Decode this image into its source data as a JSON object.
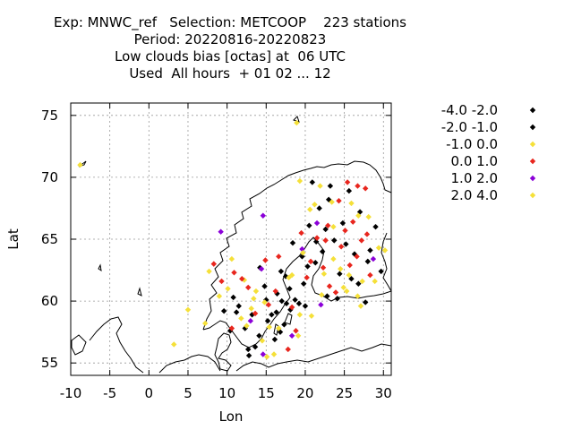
{
  "title": {
    "line1": "Exp: MNWC_ref   Selection: METCOOP    223 stations",
    "line2": "Period: 20220816-20220823",
    "line3": "Low clouds bias [octas] at  06 UTC",
    "line4": "Used  All hours  + 01 02 ... 12"
  },
  "chart_data": {
    "type": "scatter",
    "xlabel": "Lon",
    "ylabel": "Lat",
    "xlim": [
      -10,
      31
    ],
    "ylim": [
      54,
      76
    ],
    "xticks": [
      -10,
      -5,
      0,
      5,
      10,
      15,
      20,
      25,
      30
    ],
    "yticks": [
      55,
      60,
      65,
      70,
      75
    ],
    "grid": true,
    "legend_position": "right",
    "series": [
      {
        "name": "-4.0 -2.0",
        "color": "#000000",
        "points": [
          [
            11.5,
            59.6
          ],
          [
            12.3,
            57.8
          ],
          [
            15.2,
            58.4
          ],
          [
            16.4,
            60.6
          ],
          [
            17.6,
            59.8
          ],
          [
            18.1,
            59.3
          ],
          [
            19.8,
            61.4
          ],
          [
            21.3,
            63.1
          ],
          [
            22.6,
            65.8
          ],
          [
            23.2,
            69.3
          ],
          [
            25.6,
            68.9
          ],
          [
            27.0,
            67.2
          ],
          [
            28.3,
            64.1
          ],
          [
            26.8,
            61.4
          ],
          [
            24.1,
            60.2
          ],
          [
            13.6,
            56.3
          ],
          [
            14.8,
            61.2
          ],
          [
            16.9,
            62.4
          ],
          [
            18.4,
            64.7
          ],
          [
            20.5,
            66.1
          ],
          [
            21.8,
            67.5
          ],
          [
            24.8,
            66.3
          ],
          [
            29.0,
            66.0
          ],
          [
            29.7,
            62.4
          ]
        ]
      },
      {
        "name": "-2.0 -1.0",
        "color": "#000000",
        "points": [
          [
            9.6,
            59.2
          ],
          [
            10.4,
            57.6
          ],
          [
            12.8,
            55.6
          ],
          [
            14.1,
            57.2
          ],
          [
            15.7,
            58.9
          ],
          [
            16.8,
            57.5
          ],
          [
            17.3,
            58.1
          ],
          [
            18.7,
            60.1
          ],
          [
            19.2,
            59.8
          ],
          [
            20.3,
            62.8
          ],
          [
            22.2,
            64.0
          ],
          [
            24.4,
            62.2
          ],
          [
            25.9,
            61.8
          ],
          [
            27.7,
            59.9
          ],
          [
            23.0,
            68.2
          ],
          [
            20.9,
            69.6
          ],
          [
            17.5,
            62.0
          ],
          [
            14.2,
            62.7
          ],
          [
            10.8,
            60.3
          ],
          [
            12.7,
            56.1
          ],
          [
            16.1,
            56.9
          ],
          [
            19.6,
            63.6
          ],
          [
            21.4,
            64.8
          ],
          [
            25.2,
            64.6
          ],
          [
            28.0,
            63.2
          ],
          [
            22.8,
            60.4
          ],
          [
            15.0,
            60.1
          ],
          [
            18.0,
            61.0
          ],
          [
            13.2,
            58.9
          ],
          [
            11.2,
            59.1
          ],
          [
            23.7,
            64.9
          ],
          [
            26.3,
            63.8
          ],
          [
            20.0,
            59.6
          ],
          [
            17.0,
            60.0
          ],
          [
            16.3,
            59.1
          ]
        ]
      },
      {
        "name": "-1.0 0.0",
        "color": "#f5e039",
        "points": [
          [
            -8.8,
            71.0
          ],
          [
            18.9,
            74.4
          ],
          [
            3.2,
            56.5
          ],
          [
            5.0,
            59.3
          ],
          [
            7.2,
            58.2
          ],
          [
            9.0,
            60.4
          ],
          [
            13.1,
            59.4
          ],
          [
            13.7,
            60.8
          ],
          [
            14.5,
            56.8
          ],
          [
            15.1,
            55.5
          ],
          [
            20.8,
            58.8
          ],
          [
            22.1,
            60.5
          ],
          [
            23.6,
            63.4
          ],
          [
            24.5,
            62.6
          ],
          [
            26.7,
            60.4
          ],
          [
            29.4,
            64.3
          ],
          [
            28.1,
            66.8
          ],
          [
            25.9,
            67.9
          ],
          [
            23.4,
            68.0
          ],
          [
            20.6,
            67.4
          ],
          [
            18.3,
            62.1
          ],
          [
            12.2,
            61.7
          ],
          [
            10.6,
            63.4
          ],
          [
            15.4,
            57.9
          ],
          [
            19.1,
            57.2
          ],
          [
            27.3,
            61.6
          ],
          [
            24.9,
            61.1
          ]
        ]
      },
      {
        "name": "0.0 1.0",
        "color": "#e8261e",
        "points": [
          [
            8.3,
            63.0
          ],
          [
            10.9,
            62.3
          ],
          [
            11.9,
            61.8
          ],
          [
            12.7,
            61.1
          ],
          [
            14.9,
            63.3
          ],
          [
            16.6,
            63.6
          ],
          [
            17.8,
            56.1
          ],
          [
            18.8,
            57.6
          ],
          [
            20.2,
            61.9
          ],
          [
            21.5,
            65.1
          ],
          [
            22.9,
            66.1
          ],
          [
            24.6,
            64.4
          ],
          [
            25.7,
            62.9
          ],
          [
            26.6,
            63.6
          ],
          [
            27.9,
            65.4
          ],
          [
            26.1,
            66.4
          ],
          [
            24.3,
            68.1
          ],
          [
            25.4,
            69.6
          ],
          [
            26.7,
            69.3
          ],
          [
            27.7,
            69.1
          ],
          [
            23.9,
            60.7
          ],
          [
            22.3,
            62.7
          ],
          [
            20.7,
            63.2
          ],
          [
            16.2,
            60.8
          ],
          [
            15.3,
            59.7
          ],
          [
            13.6,
            59.0
          ],
          [
            10.6,
            57.8
          ],
          [
            9.3,
            61.6
          ],
          [
            18.3,
            59.5
          ],
          [
            19.5,
            65.5
          ],
          [
            22.6,
            64.9
          ],
          [
            25.1,
            65.7
          ],
          [
            27.2,
            64.9
          ],
          [
            28.3,
            62.1
          ],
          [
            23.1,
            61.2
          ]
        ]
      },
      {
        "name": "1.0 2.0",
        "color": "#8b00d8",
        "points": [
          [
            14.6,
            66.9
          ],
          [
            9.2,
            65.6
          ],
          [
            14.4,
            62.6
          ],
          [
            14.6,
            55.7
          ],
          [
            18.3,
            57.2
          ],
          [
            19.6,
            64.2
          ],
          [
            21.5,
            66.3
          ],
          [
            22.0,
            59.7
          ],
          [
            28.7,
            63.4
          ],
          [
            13.0,
            58.4
          ]
        ]
      },
      {
        "name": "2.0 4.0",
        "color": "#f5e039",
        "points": [
          [
            19.7,
            63.9
          ],
          [
            21.2,
            67.8
          ],
          [
            21.9,
            69.3
          ],
          [
            19.3,
            69.7
          ],
          [
            22.4,
            62.2
          ],
          [
            25.6,
            62.1
          ],
          [
            28.9,
            61.6
          ],
          [
            12.5,
            58.0
          ],
          [
            14.8,
            59.9
          ],
          [
            16.6,
            57.8
          ],
          [
            19.3,
            58.9
          ],
          [
            7.7,
            62.4
          ],
          [
            10.1,
            61.0
          ],
          [
            27.1,
            59.6
          ],
          [
            30.2,
            64.1
          ],
          [
            17.9,
            61.9
          ],
          [
            26.8,
            66.9
          ],
          [
            23.6,
            66.0
          ],
          [
            13.4,
            60.2
          ],
          [
            11.8,
            58.6
          ],
          [
            16.0,
            55.7
          ],
          [
            25.3,
            60.8
          ]
        ]
      }
    ]
  }
}
